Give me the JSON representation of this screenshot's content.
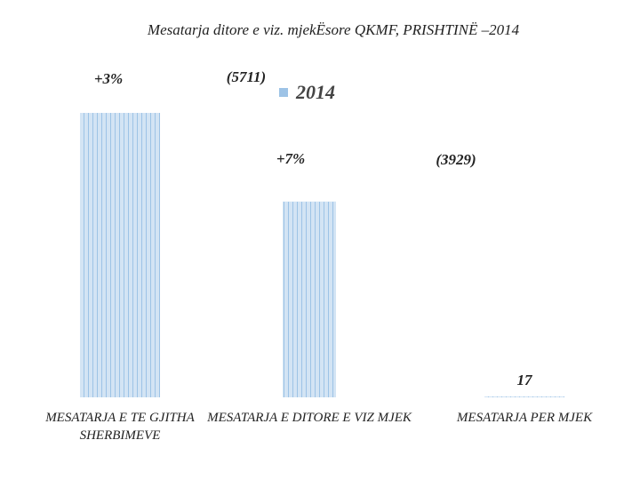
{
  "chart_data": {
    "type": "bar",
    "title": "Mesatarja ditore e viz. mjekËsore    QKMF, PRISHTINË –2014",
    "categories": [
      "MESATARJA E TE GJITHA SHERBIMEVE",
      "MESATARJA E DITORE E VIZ MJEK",
      "MESATARJA PER MJEK"
    ],
    "series": [
      {
        "name": "2014",
        "color": "#9dc3e6",
        "values": [
          5711,
          3929,
          17
        ],
        "value_labels": [
          "(5711)",
          "(3929)",
          "17"
        ]
      }
    ],
    "annotations": [
      "+3%",
      "+7%"
    ]
  }
}
